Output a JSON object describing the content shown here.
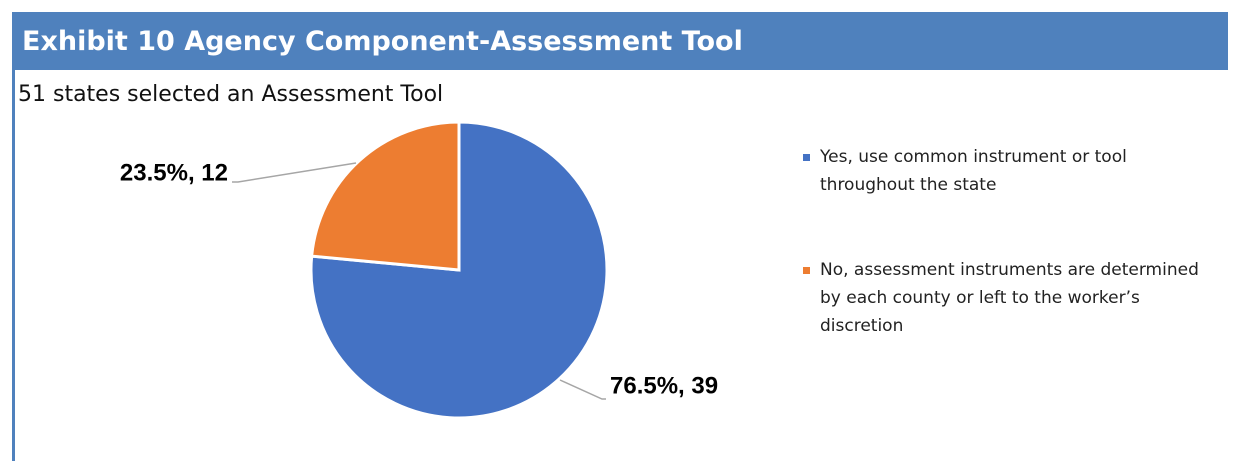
{
  "chart_data": {
    "type": "pie",
    "title": "Exhibit 10 Agency Component-Assessment Tool",
    "subtitle": "51 states selected an Assessment  Tool",
    "categories": [
      "Yes, use common instrument or tool throughout the state",
      "No, assessment  instruments are determined by each county or left to the worker’s discretion"
    ],
    "values": [
      76.5,
      23.5
    ],
    "value_labels": [
      "76.5%,  39",
      "23.5%, 12"
    ],
    "colors": [
      "#4472c4",
      "#ed7d31"
    ],
    "legend": "right"
  }
}
